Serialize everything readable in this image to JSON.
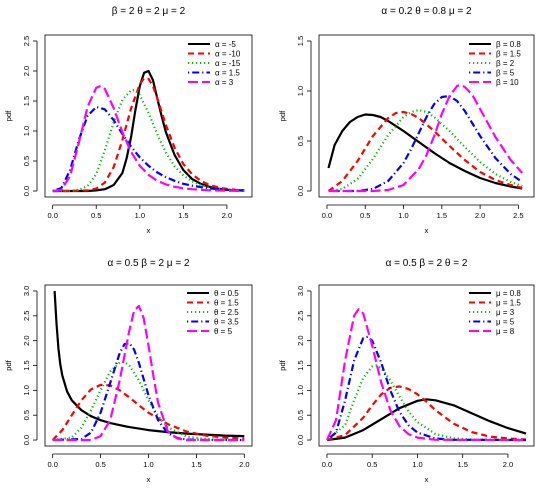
{
  "chart_data": [
    {
      "type": "line",
      "title": "β = 2  θ = 2  μ = 2",
      "xlabel": "x",
      "ylabel": "pdf",
      "xlim": [
        0,
        2.2
      ],
      "ylim": [
        0,
        2.5
      ],
      "xticks": [
        "0.0",
        "0.5",
        "1.0",
        "1.5",
        "2.0"
      ],
      "yticks": [
        "0.0",
        "0.5",
        "1.0",
        "1.5",
        "2.0",
        "2.5"
      ],
      "legend_position": "top-right",
      "series": [
        {
          "name": "α = -5",
          "color": "#000000",
          "dash": "solid",
          "x": [
            0,
            0.2,
            0.4,
            0.5,
            0.6,
            0.7,
            0.8,
            0.85,
            0.9,
            0.95,
            1.0,
            1.05,
            1.1,
            1.15,
            1.2,
            1.25,
            1.3,
            1.4,
            1.5,
            1.6,
            1.7,
            1.8,
            1.9,
            2.0,
            2.1,
            2.2
          ],
          "y": [
            0,
            0,
            0,
            0.01,
            0.03,
            0.1,
            0.3,
            0.55,
            0.9,
            1.35,
            1.75,
            1.97,
            2.0,
            1.85,
            1.55,
            1.25,
            0.98,
            0.6,
            0.35,
            0.2,
            0.12,
            0.07,
            0.04,
            0.02,
            0.01,
            0.005
          ]
        },
        {
          "name": "α = -10",
          "color": "#ff0000",
          "dash": "dashed",
          "x": [
            0,
            0.2,
            0.4,
            0.5,
            0.6,
            0.7,
            0.8,
            0.9,
            1.0,
            1.05,
            1.1,
            1.15,
            1.2,
            1.3,
            1.4,
            1.5,
            1.6,
            1.7,
            1.8,
            1.9,
            2.0,
            2.1,
            2.2
          ],
          "y": [
            0,
            0,
            0.01,
            0.04,
            0.14,
            0.4,
            0.85,
            1.38,
            1.78,
            1.88,
            1.87,
            1.75,
            1.55,
            1.1,
            0.72,
            0.45,
            0.28,
            0.17,
            0.1,
            0.06,
            0.035,
            0.02,
            0.01
          ]
        },
        {
          "name": "α = -15",
          "color": "#00bb00",
          "dash": "dotted",
          "x": [
            0,
            0.2,
            0.3,
            0.4,
            0.5,
            0.6,
            0.7,
            0.8,
            0.9,
            0.95,
            1.0,
            1.1,
            1.2,
            1.3,
            1.4,
            1.5,
            1.6,
            1.7,
            1.8,
            1.9,
            2.0,
            2.1,
            2.2
          ],
          "y": [
            0,
            0,
            0.02,
            0.08,
            0.28,
            0.68,
            1.15,
            1.52,
            1.68,
            1.68,
            1.6,
            1.3,
            0.95,
            0.64,
            0.41,
            0.26,
            0.16,
            0.1,
            0.06,
            0.035,
            0.02,
            0.012,
            0.007
          ]
        },
        {
          "name": "α = 1.5",
          "color": "#0000ff",
          "dash": "dotdash",
          "x": [
            0,
            0.1,
            0.2,
            0.3,
            0.4,
            0.5,
            0.6,
            0.7,
            0.8,
            0.9,
            1.0,
            1.1,
            1.2,
            1.3,
            1.4,
            1.5,
            1.6,
            1.7,
            1.8,
            1.9,
            2.0,
            2.1,
            2.2
          ],
          "y": [
            0,
            0.05,
            0.35,
            0.85,
            1.25,
            1.4,
            1.36,
            1.18,
            0.95,
            0.74,
            0.56,
            0.42,
            0.31,
            0.23,
            0.17,
            0.12,
            0.09,
            0.065,
            0.045,
            0.03,
            0.02,
            0.015,
            0.01
          ]
        },
        {
          "name": "α = 3",
          "color": "#ff00ff",
          "dash": "longdash",
          "x": [
            0,
            0.1,
            0.2,
            0.3,
            0.4,
            0.5,
            0.55,
            0.6,
            0.7,
            0.8,
            0.9,
            1.0,
            1.1,
            1.2,
            1.3,
            1.4,
            1.5,
            1.6,
            1.7,
            1.8,
            2.0,
            2.2
          ],
          "y": [
            0,
            0.02,
            0.25,
            0.8,
            1.4,
            1.72,
            1.75,
            1.7,
            1.38,
            0.98,
            0.65,
            0.42,
            0.27,
            0.17,
            0.11,
            0.07,
            0.045,
            0.03,
            0.02,
            0.012,
            0.005,
            0.002
          ]
        }
      ]
    },
    {
      "type": "line",
      "title": "α = 0.2  θ = 0.8  μ = 2",
      "xlabel": "x",
      "ylabel": "pdf",
      "xlim": [
        0,
        2.6
      ],
      "ylim": [
        0,
        1.5
      ],
      "xticks": [
        "0.0",
        "0.5",
        "1.0",
        "1.5",
        "2.0",
        "2.5"
      ],
      "yticks": [
        "0.0",
        "0.5",
        "1.0",
        "1.5"
      ],
      "legend_position": "top-right",
      "series": [
        {
          "name": "β = 0.8",
          "color": "#000000",
          "dash": "solid",
          "x": [
            0.02,
            0.1,
            0.2,
            0.3,
            0.4,
            0.5,
            0.6,
            0.7,
            0.8,
            1.0,
            1.2,
            1.4,
            1.6,
            1.8,
            2.0,
            2.2,
            2.4,
            2.55
          ],
          "y": [
            0.23,
            0.46,
            0.6,
            0.69,
            0.74,
            0.765,
            0.76,
            0.74,
            0.7,
            0.6,
            0.49,
            0.38,
            0.28,
            0.2,
            0.13,
            0.08,
            0.045,
            0.025
          ]
        },
        {
          "name": "β = 1.5",
          "color": "#ff0000",
          "dash": "dashed",
          "x": [
            0.02,
            0.2,
            0.4,
            0.6,
            0.8,
            0.9,
            1.0,
            1.1,
            1.2,
            1.4,
            1.6,
            1.8,
            2.0,
            2.2,
            2.4,
            2.55
          ],
          "y": [
            0.0,
            0.1,
            0.3,
            0.55,
            0.73,
            0.78,
            0.79,
            0.77,
            0.73,
            0.6,
            0.45,
            0.31,
            0.19,
            0.11,
            0.06,
            0.03
          ]
        },
        {
          "name": "β = 2",
          "color": "#00bb00",
          "dash": "dotted",
          "x": [
            0.02,
            0.2,
            0.4,
            0.6,
            0.8,
            1.0,
            1.1,
            1.2,
            1.3,
            1.4,
            1.6,
            1.8,
            2.0,
            2.2,
            2.4,
            2.55
          ],
          "y": [
            0.0,
            0.02,
            0.12,
            0.32,
            0.56,
            0.74,
            0.79,
            0.81,
            0.79,
            0.74,
            0.6,
            0.44,
            0.29,
            0.17,
            0.09,
            0.05
          ]
        },
        {
          "name": "β = 5",
          "color": "#0000ff",
          "dash": "dotdash",
          "x": [
            0.02,
            0.4,
            0.6,
            0.8,
            1.0,
            1.1,
            1.2,
            1.3,
            1.4,
            1.5,
            1.6,
            1.7,
            1.8,
            2.0,
            2.2,
            2.4,
            2.55
          ],
          "y": [
            0.0,
            0.0,
            0.02,
            0.1,
            0.28,
            0.42,
            0.58,
            0.74,
            0.87,
            0.94,
            0.95,
            0.9,
            0.8,
            0.55,
            0.33,
            0.17,
            0.09
          ]
        },
        {
          "name": "β = 10",
          "color": "#ff00ff",
          "dash": "longdash",
          "x": [
            0.02,
            0.6,
            0.8,
            1.0,
            1.2,
            1.3,
            1.4,
            1.5,
            1.6,
            1.7,
            1.75,
            1.8,
            1.9,
            2.0,
            2.2,
            2.4,
            2.55
          ],
          "y": [
            0.0,
            0.0,
            0.01,
            0.06,
            0.22,
            0.36,
            0.55,
            0.77,
            0.95,
            1.05,
            1.06,
            1.04,
            0.96,
            0.82,
            0.54,
            0.31,
            0.18
          ]
        }
      ]
    },
    {
      "type": "line",
      "title": "α = 0.5  β = 2  μ = 2",
      "xlabel": "x",
      "ylabel": "pdf",
      "xlim": [
        0,
        2.0
      ],
      "ylim": [
        0,
        3.0
      ],
      "xticks": [
        "0.0",
        "0.5",
        "1.0",
        "1.5",
        "2.0"
      ],
      "yticks": [
        "0.0",
        "0.5",
        "1.0",
        "1.5",
        "2.0",
        "2.5",
        "3.0"
      ],
      "legend_position": "top-right",
      "series": [
        {
          "name": "θ = 0.5",
          "color": "#000000",
          "dash": "solid",
          "x": [
            0.02,
            0.04,
            0.06,
            0.08,
            0.1,
            0.15,
            0.2,
            0.3,
            0.4,
            0.5,
            0.6,
            0.8,
            1.0,
            1.2,
            1.4,
            1.6,
            1.8,
            2.0
          ],
          "y": [
            3.0,
            2.35,
            1.85,
            1.52,
            1.3,
            0.98,
            0.8,
            0.6,
            0.48,
            0.4,
            0.34,
            0.26,
            0.2,
            0.16,
            0.13,
            0.11,
            0.09,
            0.08
          ]
        },
        {
          "name": "θ = 1.5",
          "color": "#ff0000",
          "dash": "dashed",
          "x": [
            0.0,
            0.1,
            0.2,
            0.3,
            0.4,
            0.5,
            0.6,
            0.7,
            0.8,
            0.9,
            1.0,
            1.2,
            1.4,
            1.6,
            1.8,
            2.0
          ],
          "y": [
            0.0,
            0.2,
            0.5,
            0.8,
            1.02,
            1.11,
            1.1,
            1.0,
            0.86,
            0.7,
            0.55,
            0.32,
            0.17,
            0.09,
            0.05,
            0.03
          ]
        },
        {
          "name": "θ = 2.5",
          "color": "#00bb00",
          "dash": "dotted",
          "x": [
            0.0,
            0.2,
            0.3,
            0.4,
            0.5,
            0.6,
            0.7,
            0.75,
            0.8,
            0.9,
            1.0,
            1.1,
            1.2,
            1.4,
            1.6,
            1.8,
            2.0
          ],
          "y": [
            0.0,
            0.05,
            0.25,
            0.6,
            1.0,
            1.38,
            1.56,
            1.57,
            1.5,
            1.2,
            0.8,
            0.48,
            0.26,
            0.07,
            0.02,
            0.005,
            0.0
          ]
        },
        {
          "name": "θ = 3.5",
          "color": "#0000ff",
          "dash": "dotdash",
          "x": [
            0.0,
            0.3,
            0.4,
            0.5,
            0.6,
            0.7,
            0.75,
            0.8,
            0.85,
            0.9,
            1.0,
            1.1,
            1.2,
            1.3,
            1.4,
            1.6,
            2.0
          ],
          "y": [
            0.0,
            0.02,
            0.15,
            0.55,
            1.15,
            1.75,
            1.93,
            1.95,
            1.82,
            1.55,
            0.9,
            0.4,
            0.14,
            0.04,
            0.01,
            0.0,
            0.0
          ]
        },
        {
          "name": "θ = 5",
          "color": "#ff00ff",
          "dash": "longdash",
          "x": [
            0.0,
            0.4,
            0.5,
            0.6,
            0.7,
            0.8,
            0.85,
            0.9,
            0.95,
            1.0,
            1.05,
            1.1,
            1.2,
            1.3,
            1.4,
            1.6,
            2.0
          ],
          "y": [
            0.0,
            0.0,
            0.08,
            0.4,
            1.2,
            2.2,
            2.6,
            2.7,
            2.45,
            1.9,
            1.3,
            0.75,
            0.18,
            0.03,
            0.0,
            0.0,
            0.0
          ]
        }
      ]
    },
    {
      "type": "line",
      "title": "α = 0.5  β = 2  θ = 2",
      "xlabel": "x",
      "ylabel": "pdf",
      "xlim": [
        0,
        2.2
      ],
      "ylim": [
        0,
        3.0
      ],
      "xticks": [
        "0.0",
        "0.5",
        "1.0",
        "1.5",
        "2.0"
      ],
      "yticks": [
        "0.0",
        "0.5",
        "1.0",
        "1.5",
        "2.0",
        "2.5",
        "3.0"
      ],
      "legend_position": "top-right",
      "series": [
        {
          "name": "μ = 0.8",
          "color": "#000000",
          "dash": "solid",
          "x": [
            0.0,
            0.2,
            0.4,
            0.6,
            0.8,
            1.0,
            1.1,
            1.2,
            1.4,
            1.6,
            1.8,
            2.0,
            2.2
          ],
          "y": [
            0.0,
            0.05,
            0.2,
            0.42,
            0.64,
            0.79,
            0.82,
            0.8,
            0.7,
            0.54,
            0.38,
            0.24,
            0.13
          ]
        },
        {
          "name": "μ = 1.5",
          "color": "#ff0000",
          "dash": "dashed",
          "x": [
            0.0,
            0.2,
            0.4,
            0.5,
            0.6,
            0.7,
            0.8,
            0.9,
            1.0,
            1.1,
            1.2,
            1.4,
            1.6,
            1.8,
            2.0,
            2.2
          ],
          "y": [
            0.0,
            0.1,
            0.45,
            0.7,
            0.92,
            1.05,
            1.08,
            1.03,
            0.92,
            0.77,
            0.6,
            0.33,
            0.16,
            0.07,
            0.03,
            0.01
          ]
        },
        {
          "name": "μ = 3",
          "color": "#00bb00",
          "dash": "dotted",
          "x": [
            0.0,
            0.2,
            0.3,
            0.4,
            0.5,
            0.55,
            0.6,
            0.7,
            0.8,
            0.9,
            1.0,
            1.2,
            1.4,
            1.6,
            2.2
          ],
          "y": [
            0.0,
            0.3,
            0.8,
            1.25,
            1.48,
            1.5,
            1.45,
            1.2,
            0.88,
            0.58,
            0.36,
            0.12,
            0.035,
            0.01,
            0.0
          ]
        },
        {
          "name": "μ = 5",
          "color": "#0000ff",
          "dash": "dotdash",
          "x": [
            0.0,
            0.1,
            0.2,
            0.3,
            0.4,
            0.45,
            0.5,
            0.6,
            0.7,
            0.8,
            0.9,
            1.0,
            1.2,
            1.4,
            2.2
          ],
          "y": [
            0.0,
            0.15,
            0.8,
            1.6,
            2.05,
            2.08,
            2.0,
            1.55,
            1.0,
            0.57,
            0.3,
            0.15,
            0.03,
            0.005,
            0.0
          ]
        },
        {
          "name": "μ = 8",
          "color": "#ff00ff",
          "dash": "longdash",
          "x": [
            0.0,
            0.1,
            0.2,
            0.3,
            0.35,
            0.4,
            0.5,
            0.6,
            0.7,
            0.8,
            0.9,
            1.0,
            1.2,
            2.2
          ],
          "y": [
            0.0,
            0.4,
            1.6,
            2.5,
            2.63,
            2.55,
            1.9,
            1.15,
            0.6,
            0.28,
            0.12,
            0.05,
            0.005,
            0.0
          ]
        }
      ]
    }
  ]
}
